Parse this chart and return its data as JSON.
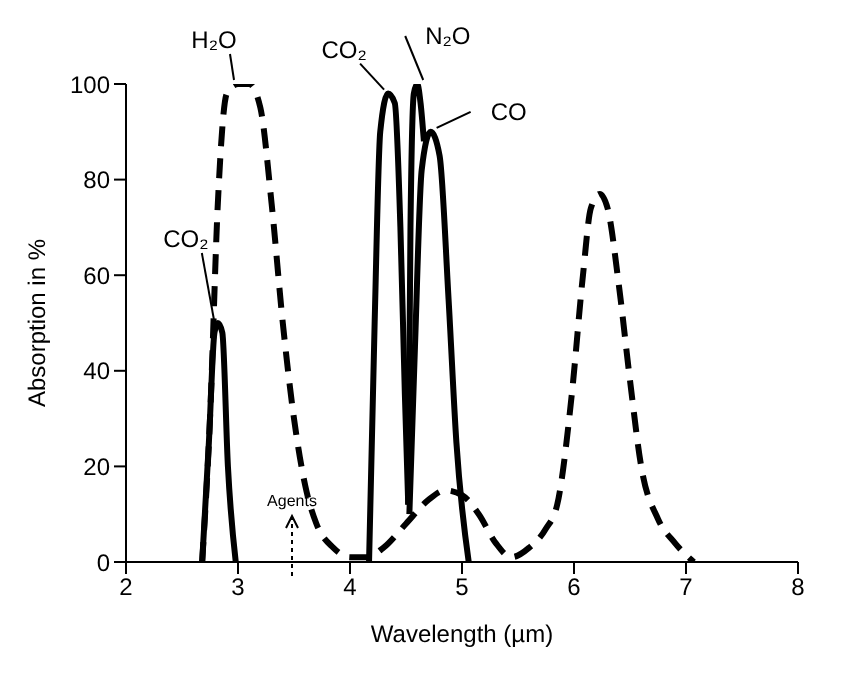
{
  "chart_data": {
    "type": "line",
    "xlabel": "Wavelength (µm)",
    "ylabel": "Absorption in %",
    "xlim": [
      2,
      8
    ],
    "ylim": [
      0,
      100
    ],
    "xticks": [
      2,
      3,
      4,
      5,
      6,
      7,
      8
    ],
    "yticks": [
      0,
      20,
      40,
      60,
      80,
      100
    ],
    "marker": "none",
    "series": [
      {
        "color": "#000000",
        "line_style": "dashed",
        "x": [
          2.68,
          2.75,
          2.82,
          2.9,
          3.0,
          3.1,
          3.2,
          3.3,
          3.4,
          3.5,
          3.6,
          3.7,
          3.85,
          4.0,
          4.15,
          4.3,
          4.5,
          4.7,
          4.85,
          5.0,
          5.15,
          5.3,
          5.44,
          5.6,
          5.75,
          5.85,
          5.98,
          6.08,
          6.15,
          6.23,
          6.3,
          6.4,
          6.5,
          6.6,
          6.75,
          6.9,
          7.07
        ],
        "values": [
          0,
          30,
          75,
          98,
          100,
          100,
          95,
          75,
          50,
          30,
          16,
          8,
          3,
          1,
          1,
          3,
          8,
          13,
          15,
          14,
          10,
          4,
          1,
          3,
          7,
          12,
          35,
          60,
          74,
          77,
          74,
          58,
          38,
          20,
          9,
          4,
          0
        ]
      },
      {
        "color": "#000000",
        "line_style": "solid",
        "x": [
          2.68,
          2.74,
          2.79,
          2.82,
          2.86,
          2.91,
          2.98
        ],
        "values": [
          0,
          25,
          48,
          50,
          48,
          20,
          0
        ]
      },
      {
        "color": "#000000",
        "line_style": "solid",
        "x": [
          4.17,
          4.22,
          4.27,
          4.34,
          4.4,
          4.45,
          4.49,
          4.52
        ],
        "values": [
          0,
          50,
          90,
          98,
          96,
          70,
          35,
          12
        ]
      },
      {
        "color": "#000000",
        "line_style": "solid",
        "x": [
          4.52,
          4.54,
          4.57,
          4.6,
          4.63,
          4.66
        ],
        "values": [
          12,
          70,
          98,
          100,
          96,
          88
        ]
      },
      {
        "color": "#000000",
        "line_style": "solid",
        "x": [
          4.53,
          4.58,
          4.64,
          4.72,
          4.8,
          4.88,
          4.95,
          5.06
        ],
        "values": [
          10,
          45,
          82,
          90,
          85,
          55,
          25,
          0
        ]
      }
    ],
    "annotations": [
      {
        "text": "H₂O",
        "x": 3.0,
        "y": 100
      },
      {
        "text": "CO₂",
        "x": 2.82,
        "y": 50
      },
      {
        "text": "CO₂",
        "x": 4.34,
        "y": 98
      },
      {
        "text": "N₂O",
        "x": 4.6,
        "y": 100
      },
      {
        "text": "CO",
        "x": 4.72,
        "y": 90
      },
      "Agents"
    ]
  }
}
